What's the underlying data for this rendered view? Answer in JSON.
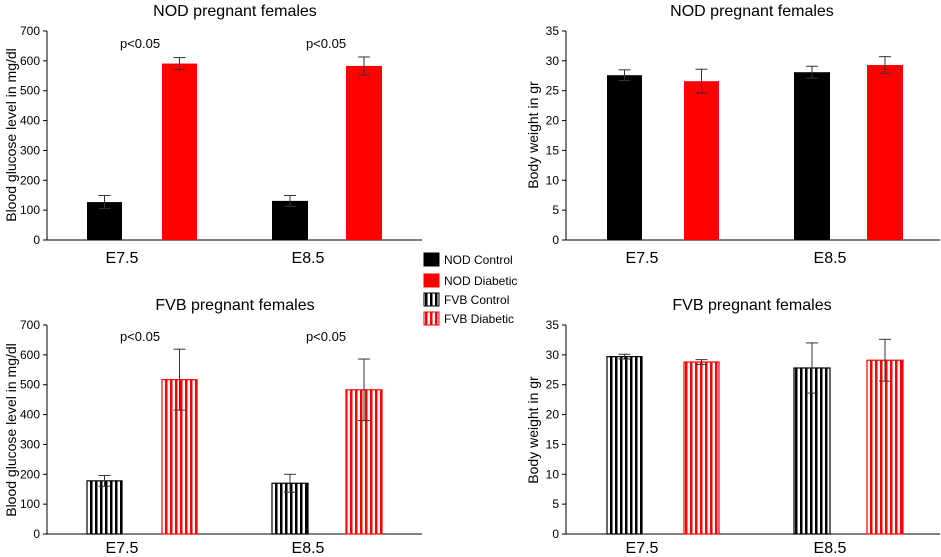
{
  "colors": {
    "black": "#000000",
    "red": "#ff0000",
    "axis": "#000000",
    "background": "#ffffff"
  },
  "legend": {
    "entries": [
      {
        "label": "NOD Control",
        "color": "#000000",
        "pattern": "solid"
      },
      {
        "label": "NOD Diabetic",
        "color": "#ff0000",
        "pattern": "solid"
      },
      {
        "label": "FVB Control",
        "color": "#000000",
        "pattern": "striped"
      },
      {
        "label": "FVB Diabetic",
        "color": "#ff0000",
        "pattern": "striped"
      }
    ]
  },
  "chart_data": [
    {
      "type": "bar",
      "title": "NOD pregnant females",
      "xlabel": "",
      "ylabel": "Blood glucose level in mg/dl",
      "categories": [
        "E7.5",
        "E8.5"
      ],
      "ylim": [
        0,
        700
      ],
      "yticks": [
        0,
        100,
        200,
        300,
        400,
        500,
        600,
        700
      ],
      "series": [
        {
          "name": "NOD Control",
          "color": "#000000",
          "pattern": "solid",
          "values": [
            127,
            131
          ],
          "errors": [
            22,
            18
          ]
        },
        {
          "name": "NOD Diabetic",
          "color": "#ff0000",
          "pattern": "solid",
          "values": [
            591,
            583
          ],
          "errors": [
            20,
            30
          ]
        }
      ],
      "annotations": [
        "p<0.05",
        "p<0.05"
      ]
    },
    {
      "type": "bar",
      "title": "NOD  pregnant females",
      "xlabel": "",
      "ylabel": "Body weight in gr",
      "categories": [
        "E7.5",
        "E8.5"
      ],
      "ylim": [
        0,
        35
      ],
      "yticks": [
        0,
        5,
        10,
        15,
        20,
        25,
        30,
        35
      ],
      "series": [
        {
          "name": "NOD Control",
          "color": "#000000",
          "pattern": "solid",
          "values": [
            27.6,
            28.1
          ],
          "errors": [
            0.9,
            1.0
          ]
        },
        {
          "name": "NOD Diabetic",
          "color": "#ff0000",
          "pattern": "solid",
          "values": [
            26.6,
            29.3
          ],
          "errors": [
            2.0,
            1.4
          ]
        }
      ],
      "annotations": []
    },
    {
      "type": "bar",
      "title": "FVB pregnant females",
      "xlabel": "",
      "ylabel": "Blood glucose level in mg/dl",
      "categories": [
        "E7.5",
        "E8.5"
      ],
      "ylim": [
        0,
        700
      ],
      "yticks": [
        0,
        100,
        200,
        300,
        400,
        500,
        600,
        700
      ],
      "series": [
        {
          "name": "FVB Control",
          "color": "#000000",
          "pattern": "striped",
          "values": [
            178,
            170
          ],
          "errors": [
            18,
            30
          ]
        },
        {
          "name": "FVB Diabetic",
          "color": "#ff0000",
          "pattern": "striped",
          "values": [
            517,
            483
          ],
          "errors": [
            102,
            103
          ]
        }
      ],
      "annotations": [
        "p<0.05",
        "p<0.05"
      ]
    },
    {
      "type": "bar",
      "title": "FVB  pregnant females",
      "xlabel": "",
      "ylabel": "Body weight in gr",
      "categories": [
        "E7.5",
        "E8.5"
      ],
      "ylim": [
        0,
        35
      ],
      "yticks": [
        0,
        5,
        10,
        15,
        20,
        25,
        30,
        35
      ],
      "series": [
        {
          "name": "FVB Control",
          "color": "#000000",
          "pattern": "striped",
          "values": [
            29.7,
            27.8
          ],
          "errors": [
            0.4,
            4.2
          ]
        },
        {
          "name": "FVB Diabetic",
          "color": "#ff0000",
          "pattern": "striped",
          "values": [
            28.8,
            29.1
          ],
          "errors": [
            0.4,
            3.5
          ]
        }
      ],
      "annotations": []
    }
  ]
}
